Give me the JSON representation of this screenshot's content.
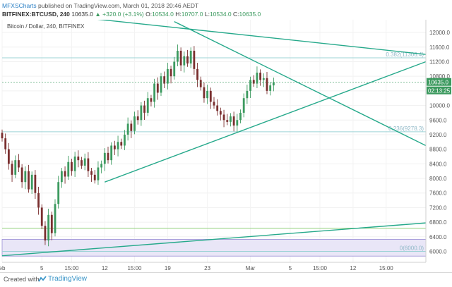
{
  "header": {
    "author": "MFXSCharts",
    "published": "published on TradingView.com, March 01, 2018 20:46 AEDT",
    "symbol_line": "BITFINEX:BTCUSD, 240",
    "last_price": "10635.0",
    "change": "+320.0 (+3.1%)",
    "ohlc": {
      "o_label": "O:",
      "o": "10534.0",
      "h_label": "H:",
      "h": "10707.0",
      "l_label": "L:",
      "l": "10534.0",
      "c_label": "C:",
      "c": "10635.0"
    }
  },
  "subtitle": "Bitcoin / Dollar, 240, BITFINEX",
  "footer": {
    "created_with": "Created with",
    "brand": "TradingView"
  },
  "colors": {
    "up": "#3c9a5f",
    "down": "#7a2f2f",
    "trendline": "#26a98b",
    "fib_line": "#9dd3d6",
    "fib_text": "#8fb8c7",
    "support": "#8fcf7a",
    "zone_fill": "#e9e6f7",
    "zone_edge": "#9b8fd6"
  },
  "chart_data": {
    "type": "candlestick",
    "title": "Bitcoin / Dollar, 240, BITFINEX",
    "ylim": [
      5700,
      12350
    ],
    "x_index_range": [
      0,
      128
    ],
    "x_ticks": [
      {
        "label": "eb",
        "i": 0
      },
      {
        "label": "5",
        "i": 12
      },
      {
        "label": "15:00",
        "i": 21
      },
      {
        "label": "12",
        "i": 31
      },
      {
        "label": "15:00",
        "i": 40
      },
      {
        "label": "19",
        "i": 50
      },
      {
        "label": "23",
        "i": 62
      },
      {
        "label": "Mar",
        "i": 75
      },
      {
        "label": "5",
        "i": 87
      },
      {
        "label": "15:00",
        "i": 96
      },
      {
        "label": "12",
        "i": 106
      },
      {
        "label": "15:00",
        "i": 116
      }
    ],
    "y_ticks": [
      6000,
      6400,
      6800,
      7200,
      7600,
      8000,
      8400,
      8800,
      9200,
      9600,
      10000,
      10400,
      10800,
      11200,
      11600,
      12000
    ],
    "last_price_label": "10635.0",
    "countdown_label": "02:13:25",
    "last_price": 10635,
    "closes": [
      9100,
      8800,
      8400,
      8100,
      8500,
      8300,
      7900,
      8200,
      7700,
      8100,
      7600,
      7200,
      6700,
      6300,
      7000,
      6500,
      7300,
      7900,
      8200,
      8050,
      8450,
      8200,
      8600,
      8500,
      8350,
      8550,
      8200,
      8100,
      7950,
      8300,
      8400,
      8700,
      8500,
      8900,
      8800,
      9000,
      8900,
      9200,
      9500,
      9300,
      9700,
      9600,
      10000,
      9800,
      10200,
      10100,
      10600,
      10350,
      10800,
      10600,
      11000,
      10800,
      11200,
      11500,
      11100,
      11350,
      11150,
      11500,
      11000,
      10700,
      10500,
      10200,
      10400,
      10100,
      10000,
      9850,
      9750,
      9600,
      9550,
      9700,
      9450,
      9600,
      9800,
      10200,
      10400,
      10700,
      10600,
      10900,
      10700,
      10750,
      10400,
      10550,
      10635
    ],
    "fib_levels": [
      {
        "label": "0.382(11306.4)",
        "value": 11306.4
      },
      {
        "label": "0.236(9278.3)",
        "value": 9278.3
      },
      {
        "label": "0(6000.0)",
        "value": 6000.0
      }
    ],
    "support_line": 6635,
    "zone": [
      5870,
      6330
    ],
    "trendlines": [
      {
        "name": "upper-descending-resistance",
        "from": [
          25,
          12400
        ],
        "to": [
          128,
          11400
        ]
      },
      {
        "name": "triangle-descending",
        "from": [
          52,
          12300
        ],
        "to": [
          128,
          8900
        ]
      },
      {
        "name": "triangle-ascending",
        "from": [
          31,
          7900
        ],
        "to": [
          128,
          11200
        ]
      },
      {
        "name": "long-term-support",
        "from": [
          0,
          5880
        ],
        "to": [
          128,
          6780
        ]
      }
    ]
  }
}
